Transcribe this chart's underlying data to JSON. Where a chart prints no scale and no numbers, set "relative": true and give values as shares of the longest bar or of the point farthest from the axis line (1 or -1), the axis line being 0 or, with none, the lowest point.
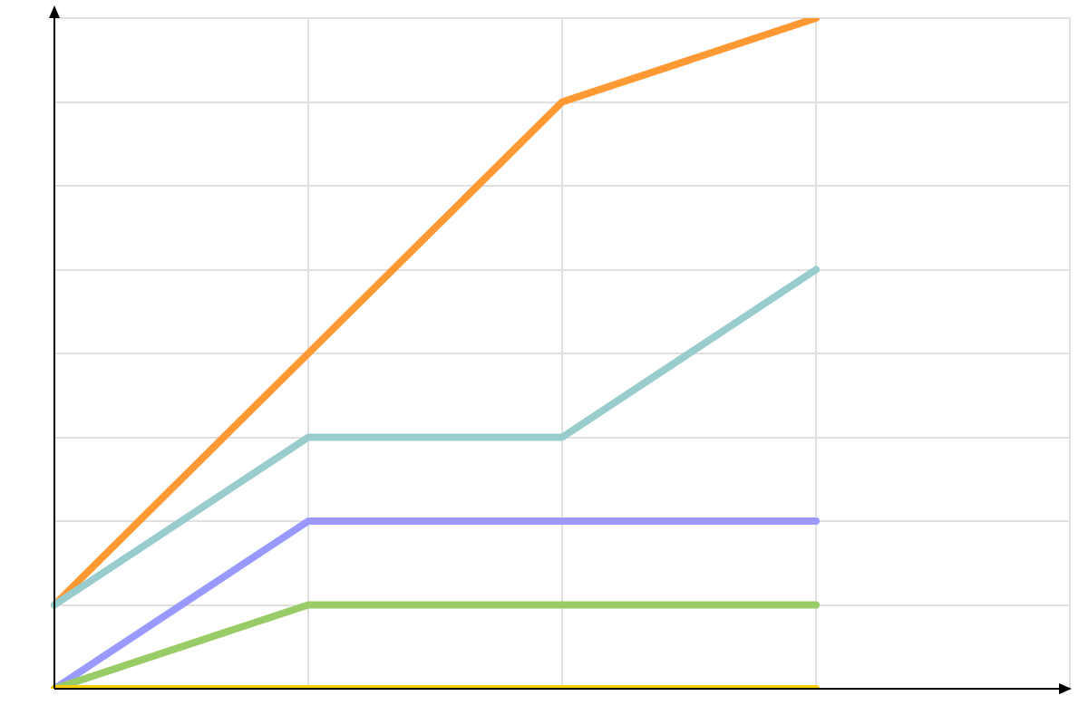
{
  "chart_data": {
    "type": "line",
    "relative": true,
    "grid": true,
    "marker": "none",
    "line_style": "solid",
    "categories": [
      null,
      null,
      null,
      null,
      null
    ],
    "series": [
      {
        "color": "#ffcc00",
        "values": [
          0,
          0,
          0,
          0,
          null
        ]
      },
      {
        "color": "#99cc66",
        "values": [
          0,
          0.125,
          0.125,
          0.125,
          null
        ]
      },
      {
        "color": "#9999ff",
        "values": [
          0,
          0.25,
          0.25,
          0.25,
          null
        ]
      },
      {
        "color": "#99cccc",
        "values": [
          0.125,
          0.375,
          0.375,
          0.625,
          null
        ]
      },
      {
        "color": "#ff9933",
        "values": [
          0.125,
          0.5,
          0.875,
          1,
          null
        ]
      }
    ]
  }
}
